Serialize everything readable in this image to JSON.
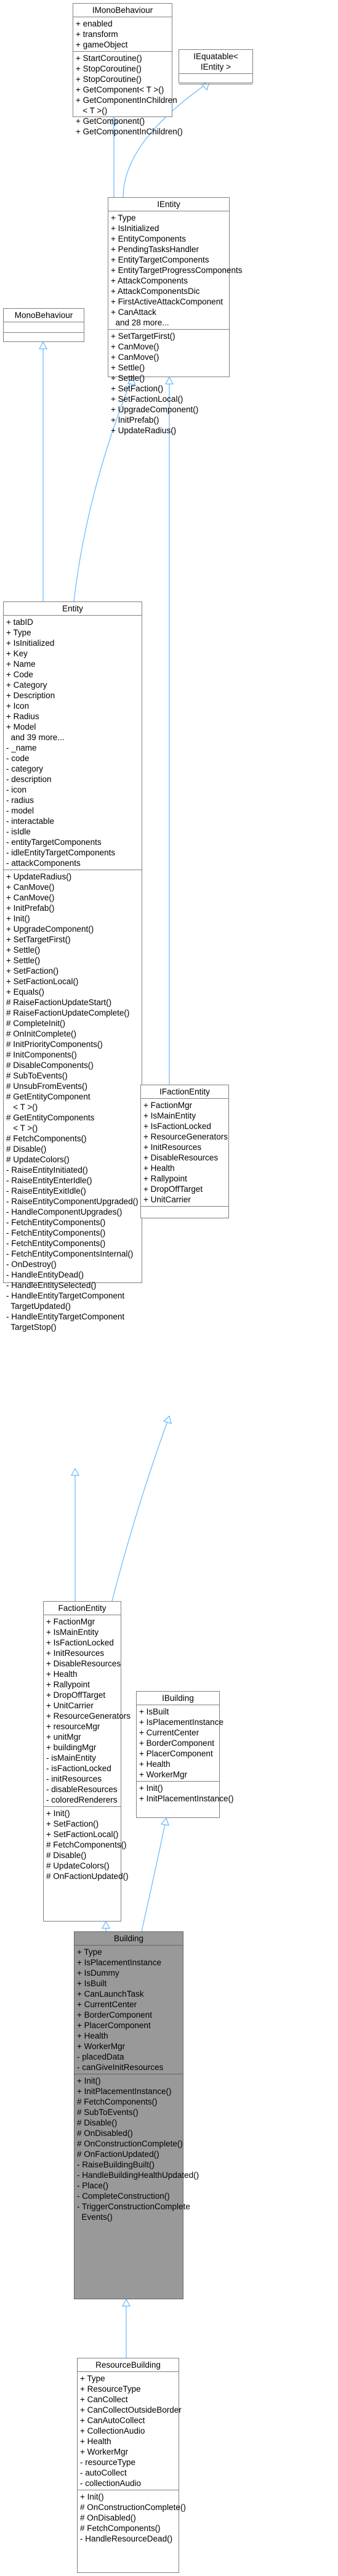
{
  "classes": {
    "imonobehaviour": {
      "name": "IMonoBehaviour",
      "attributes": [
        "+ enabled",
        "+ transform",
        "+ gameObject"
      ],
      "operations": [
        "+ StartCoroutine()",
        "+ StopCoroutine()",
        "+ StopCoroutine()",
        "+ GetComponent< T >()",
        "+ GetComponentInChildren\n   < T >()",
        "+ GetComponent()",
        "+ GetComponentInChildren()"
      ]
    },
    "iequatable": {
      "name": "IEquatable< IEntity >",
      "attributes": [],
      "operations": []
    },
    "ientity": {
      "name": "IEntity",
      "attributes": [
        "+ Type",
        "+ IsInitialized",
        "+ EntityComponents",
        "+ PendingTasksHandler",
        "+ EntityTargetComponents",
        "+ EntityTargetProgressComponents",
        "+ AttackComponents",
        "+ AttackComponentsDic",
        "+ FirstActiveAttackComponent",
        "+ CanAttack",
        "  and 28 more..."
      ],
      "operations": [
        "+ SetTargetFirst()",
        "+ CanMove()",
        "+ CanMove()",
        "+ Settle()",
        "+ Settle()",
        "+ SetFaction()",
        "+ SetFactionLocal()",
        "+ UpgradeComponent()",
        "+ InitPrefab()",
        "+ UpdateRadius()"
      ]
    },
    "monobehaviour": {
      "name": "MonoBehaviour",
      "attributes": [],
      "operations": []
    },
    "entity": {
      "name": "Entity",
      "attributes": [
        "+ tabID",
        "+ Type",
        "+ IsInitialized",
        "+ Key",
        "+ Name",
        "+ Code",
        "+ Category",
        "+ Description",
        "+ Icon",
        "+ Radius",
        "+ Model",
        "  and 39 more...",
        "- _name",
        "- code",
        "- category",
        "- description",
        "- icon",
        "- radius",
        "- model",
        "- interactable",
        "- isIdle",
        "- entityTargetComponents",
        "- idleEntityTargetComponents",
        "- attackComponents"
      ],
      "operations": [
        "+ UpdateRadius()",
        "+ CanMove()",
        "+ CanMove()",
        "+ InitPrefab()",
        "+ Init()",
        "+ UpgradeComponent()",
        "+ SetTargetFirst()",
        "+ Settle()",
        "+ Settle()",
        "+ SetFaction()",
        "+ SetFactionLocal()",
        "+ Equals()",
        "# RaiseFactionUpdateStart()",
        "# RaiseFactionUpdateComplete()",
        "# CompleteInit()",
        "# OnInitComplete()",
        "# InitPriorityComponents()",
        "# InitComponents()",
        "# DisableComponents()",
        "# SubToEvents()",
        "# UnsubFromEvents()",
        "# GetEntityComponent\n   < T >()",
        "# GetEntityComponents\n   < T >()",
        "# FetchComponents()",
        "# Disable()",
        "# UpdateColors()",
        "- RaiseEntityInitiated()",
        "- RaiseEntityEnterIdle()",
        "- RaiseEntityExitIdle()",
        "- RaiseEntityComponentUpgraded()",
        "- HandleComponentUpgrades()",
        "- FetchEntityComponents()",
        "- FetchEntityComponents()",
        "- FetchEntityComponents()",
        "- FetchEntityComponentsInternal()",
        "- OnDestroy()",
        "- HandleEntityDead()",
        "- HandleEntitySelected()",
        "- HandleEntityTargetComponent\n  TargetUpdated()",
        "- HandleEntityTargetComponent\n  TargetStop()"
      ]
    },
    "ifactionentity": {
      "name": "IFactionEntity",
      "attributes": [
        "+ FactionMgr",
        "+ IsMainEntity",
        "+ IsFactionLocked",
        "+ ResourceGenerators",
        "+ InitResources",
        "+ DisableResources",
        "+ Health",
        "+ Rallypoint",
        "+ DropOffTarget",
        "+ UnitCarrier"
      ],
      "operations": []
    },
    "factionentity": {
      "name": "FactionEntity",
      "attributes": [
        "+ FactionMgr",
        "+ IsMainEntity",
        "+ IsFactionLocked",
        "+ InitResources",
        "+ DisableResources",
        "+ Health",
        "+ Rallypoint",
        "+ DropOffTarget",
        "+ UnitCarrier",
        "+ ResourceGenerators",
        "+ resourceMgr",
        "+ unitMgr",
        "+ buildingMgr",
        "- isMainEntity",
        "- isFactionLocked",
        "- initResources",
        "- disableResources",
        "- coloredRenderers"
      ],
      "operations": [
        "+ Init()",
        "+ SetFaction()",
        "+ SetFactionLocal()",
        "# FetchComponents()",
        "# Disable()",
        "# UpdateColors()",
        "# OnFactionUpdated()"
      ]
    },
    "ibuilding": {
      "name": "IBuilding",
      "attributes": [
        "+ IsBuilt",
        "+ IsPlacementInstance",
        "+ CurrentCenter",
        "+ BorderComponent",
        "+ PlacerComponent",
        "+ Health",
        "+ WorkerMgr"
      ],
      "operations": [
        "+ Init()",
        "+ InitPlacementInstance()"
      ]
    },
    "building": {
      "name": "Building",
      "attributes": [
        "+ Type",
        "+ IsPlacementInstance",
        "+ IsDummy",
        "+ IsBuilt",
        "+ CanLaunchTask",
        "+ CurrentCenter",
        "+ BorderComponent",
        "+ PlacerComponent",
        "+ Health",
        "+ WorkerMgr",
        "- placedData",
        "- canGiveInitResources"
      ],
      "operations": [
        "+ Init()",
        "+ InitPlacementInstance()",
        "# FetchComponents()",
        "# SubToEvents()",
        "# Disable()",
        "# OnDisabled()",
        "# OnConstructionComplete()",
        "# OnFactionUpdated()",
        "- RaiseBuildingBuilt()",
        "- HandleBuildingHealthUpdated()",
        "- Place()",
        "- CompleteConstruction()",
        "- TriggerConstructionComplete\n  Events()"
      ]
    },
    "resourcebuilding": {
      "name": "ResourceBuilding",
      "attributes": [
        "+ Type",
        "+ ResourceType",
        "+ CanCollect",
        "+ CanCollectOutsideBorder",
        "+ CanAutoCollect",
        "+ CollectionAudio",
        "+ Health",
        "+ WorkerMgr",
        "- resourceType",
        "- autoCollect",
        "- collectionAudio"
      ],
      "operations": [
        "+ Init()",
        "# OnConstructionComplete()",
        "# OnDisabled()",
        "# FetchComponents()",
        "- HandleResourceDead()"
      ]
    }
  }
}
